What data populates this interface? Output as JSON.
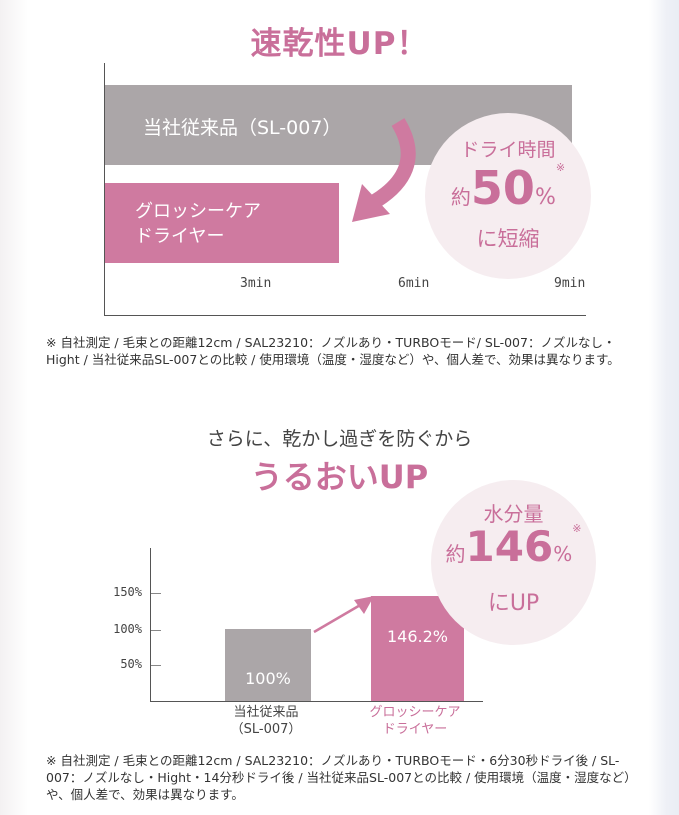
{
  "section1": {
    "title": "速乾性UP！",
    "bar_conventional_label": "当社従来品（SL-007）",
    "bar_glossy_label": "グロッシーケア\nドライヤー",
    "ticks": [
      "3min",
      "6min",
      "9min"
    ],
    "badge": {
      "line1": "ドライ時間",
      "prefix": "約",
      "value": "50",
      "unit": "%",
      "mark": "※",
      "line3": "に短縮"
    },
    "footnote": "※ 自社測定 / 毛束との距離12cm / SAL23210：ノズルあり・TURBOモード/ SL-007：ノズルなし・Hight / 当社従来品SL-007との比較 / 使用環境（温度・湿度など）や、個人差で、効果は異なります。"
  },
  "section2": {
    "subtitle": "さらに、乾かし過ぎを防ぐから",
    "title": "うるおいUP",
    "badge": {
      "line1": "水分量",
      "prefix": "約",
      "value": "146",
      "unit": "%",
      "mark": "※",
      "line3": "にUP"
    },
    "footnote": "※ 自社測定 / 毛束との距離12cm / SAL23210：ノズルあり・TURBOモード・6分30秒ドライ後 / SL-007：ノズルなし・Hight・14分秒ドライ後 / 当社従来品SL-007との比較 / 使用環境（温度・湿度など）や、個人差で、効果は異なります。"
  },
  "chart_data": [
    {
      "type": "bar",
      "orientation": "horizontal",
      "title": "速乾性UP！",
      "categories": [
        "当社従来品（SL-007）",
        "グロッシーケア ドライヤー"
      ],
      "values": [
        9,
        4.5
      ],
      "unit": "min",
      "xticks": [
        "3min",
        "6min",
        "9min"
      ],
      "xlim": [
        0,
        9
      ],
      "colors": [
        "#aba6a8",
        "#cf7aa0"
      ]
    },
    {
      "type": "bar",
      "title": "うるおいUP",
      "categories": [
        "当社従来品\n（SL-007）",
        "グロッシーケア\nドライヤー"
      ],
      "values": [
        100,
        146.2
      ],
      "value_labels": [
        "100%",
        "146.2%"
      ],
      "yticks": [
        "150%",
        "100%",
        "50%"
      ],
      "ylim": [
        0,
        150
      ],
      "colors": [
        "#aba6a8",
        "#cf7aa0"
      ],
      "category_colors": [
        "#444444",
        "#c96f9a"
      ]
    }
  ],
  "colors": {
    "accent": "#c96f9a",
    "gray_bar": "#aba6a8",
    "pink_bar": "#cf7aa0",
    "badge_bg": "#f6edf0"
  }
}
